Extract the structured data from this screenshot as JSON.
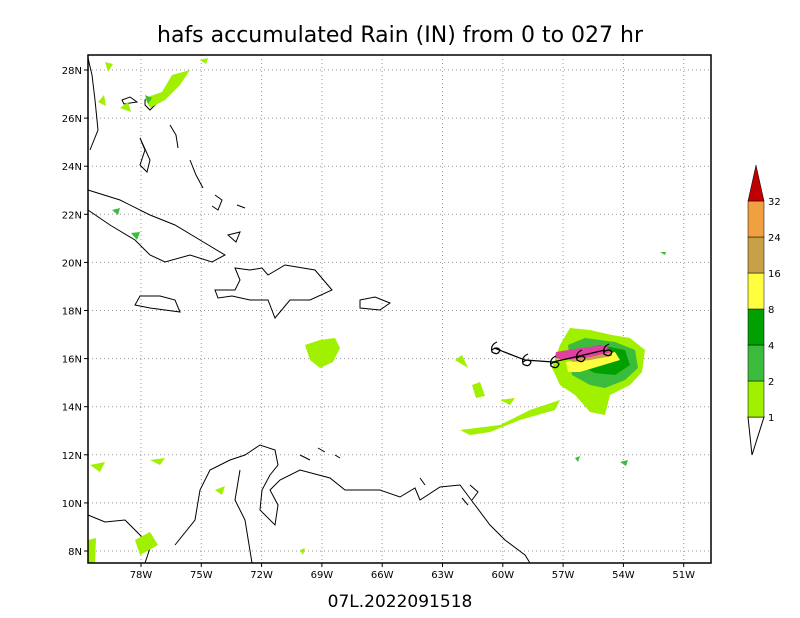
{
  "title": "hafs accumulated Rain (IN) from 0 to 027 hr",
  "footer": "07L.2022091518",
  "lon_labels": [
    "78W",
    "75W",
    "72W",
    "69W",
    "66W",
    "63W",
    "60W",
    "57W",
    "54W",
    "51W"
  ],
  "lat_labels": [
    "28N",
    "26N",
    "24N",
    "22N",
    "20N",
    "18N",
    "16N",
    "14N",
    "12N",
    "10N",
    "8N"
  ],
  "colorbar": {
    "levels": [
      1,
      2,
      4,
      8,
      16,
      24,
      32
    ],
    "colors": [
      "#a0f000",
      "#3cbc3c",
      "#00a000",
      "#ffff40",
      "#c8a048",
      "#f0a040",
      "#c00000"
    ]
  }
}
